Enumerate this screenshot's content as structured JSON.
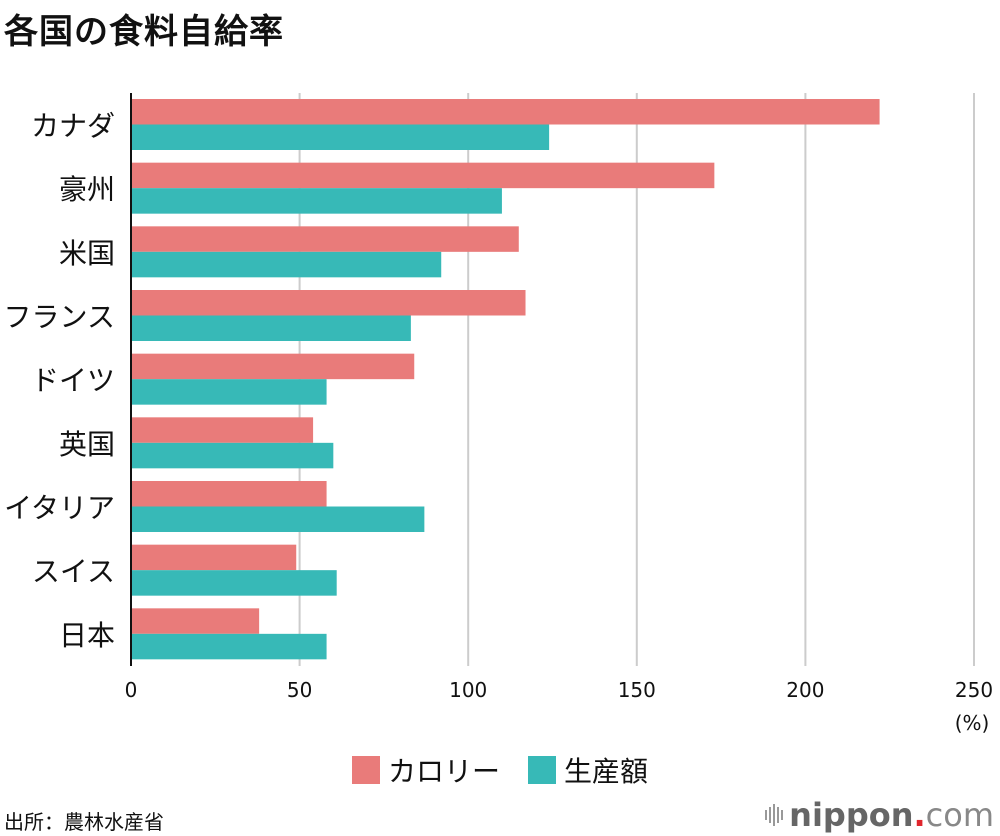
{
  "chart_data": {
    "type": "bar",
    "orientation": "horizontal",
    "title": "各国の食料自給率",
    "categories": [
      "カナダ",
      "豪州",
      "米国",
      "フランス",
      "ドイツ",
      "英国",
      "イタリア",
      "スイス",
      "日本"
    ],
    "series": [
      {
        "name": "カロリー",
        "color": "#e97b7a",
        "values": [
          222,
          173,
          115,
          117,
          84,
          54,
          58,
          49,
          38
        ]
      },
      {
        "name": "生産額",
        "color": "#37b9b7",
        "values": [
          124,
          110,
          92,
          83,
          58,
          60,
          87,
          61,
          58
        ]
      }
    ],
    "xlim": [
      0,
      250
    ],
    "xticks": [
      0,
      50,
      100,
      150,
      200,
      250
    ],
    "xticks_labels": [
      "0",
      "50",
      "100",
      "150",
      "200",
      "250"
    ],
    "xunit": "(%)",
    "xlabel": "",
    "ylabel": "",
    "grid": true,
    "legend_position": "bottom-center"
  },
  "source": "出所：農林水産省",
  "logo": {
    "name": "nippon",
    "dot": ".",
    "tld": "com"
  },
  "colors": {
    "gridline": "#cccccc",
    "axis": "#111111"
  }
}
